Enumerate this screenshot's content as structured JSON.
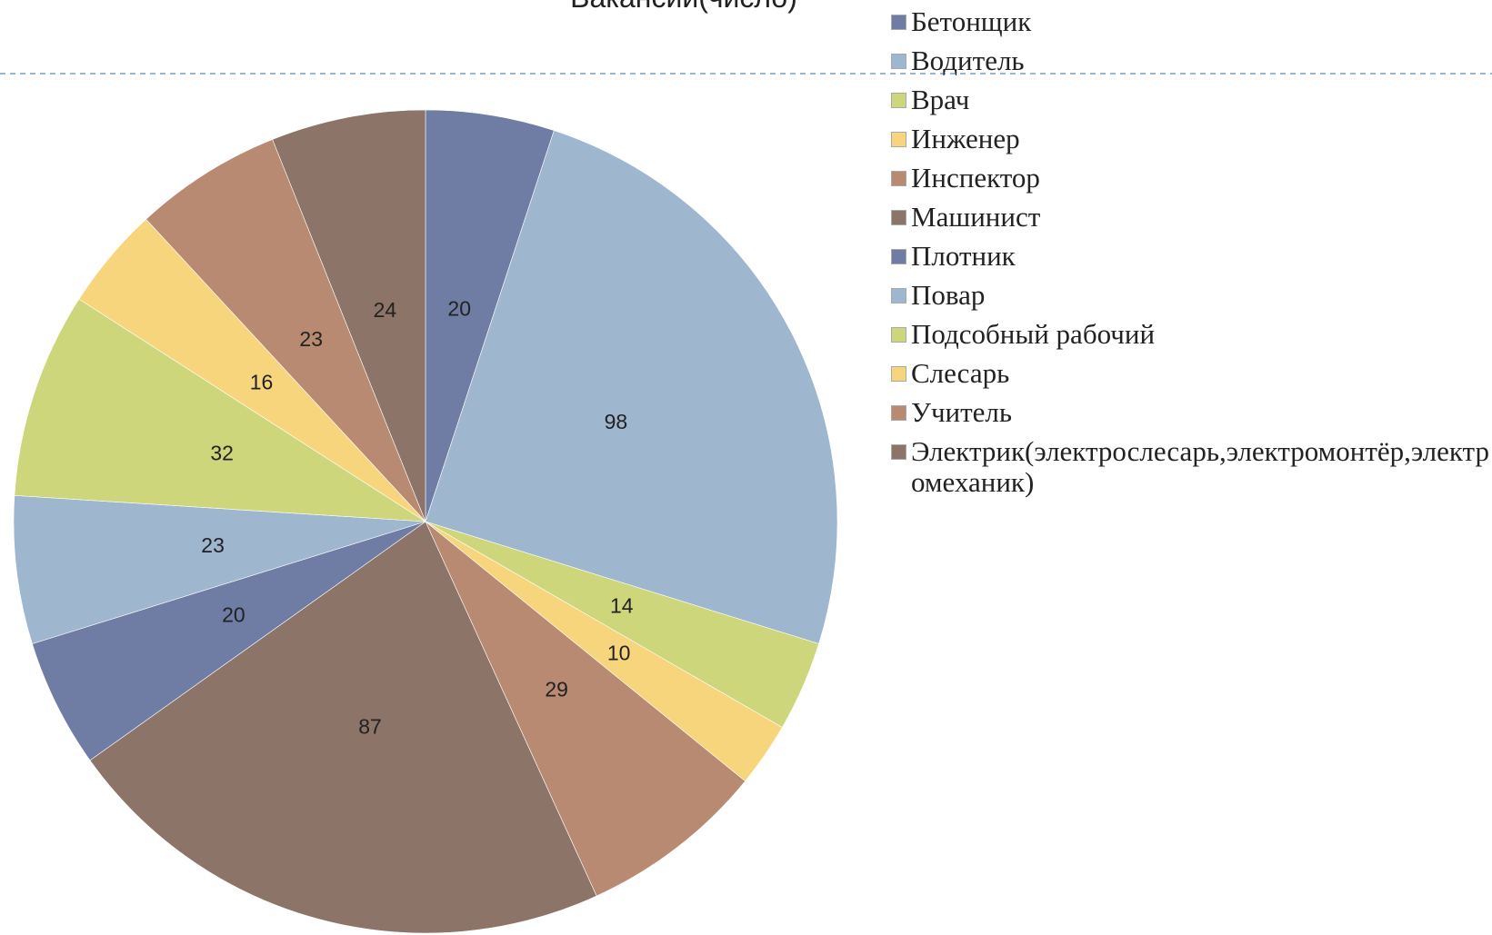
{
  "chart_data": {
    "type": "pie",
    "title": "Вакансии(число)",
    "categories": [
      "Бетонщик",
      "Водитель",
      "Врач",
      "Инженер",
      "Инспектор",
      "Машинист",
      "Плотник",
      "Повар",
      "Подсобный рабочий",
      "Слесарь",
      "Учитель",
      "Электрик(электрослесарь,электромонтёр,электромеханик)"
    ],
    "values": [
      20,
      98,
      14,
      10,
      29,
      87,
      20,
      23,
      32,
      16,
      23,
      24
    ],
    "colors": [
      "#6f7ca3",
      "#9fb6cf",
      "#cdd67a",
      "#f6d57c",
      "#b98a72",
      "#8c7469",
      "#6f7ca3",
      "#9fb6cf",
      "#cdd67a",
      "#f6d57c",
      "#b98a72",
      "#8c7469"
    ],
    "legend": "right"
  }
}
